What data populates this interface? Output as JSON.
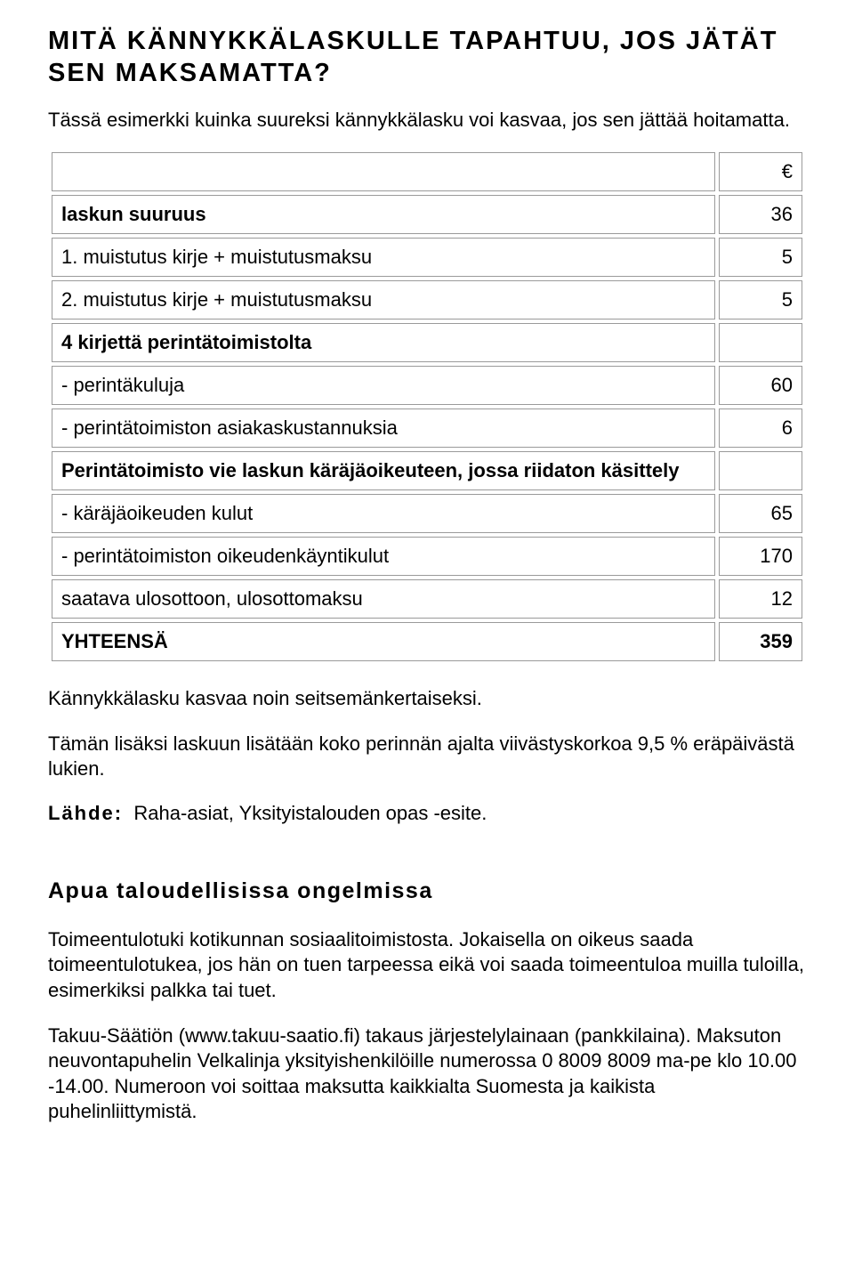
{
  "title_line1": "MITÄ KÄNNYKKÄLASKULLE TAPAHTUU, JOS JÄTÄT",
  "title_line2": "SEN MAKSAMATTA?",
  "intro": "Tässä esimerkki kuinka suureksi kännykkälasku voi kasvaa, jos sen jättää hoitamatta.",
  "currency": "€",
  "rows": {
    "r0": {
      "label": "laskun suuruus",
      "value": "36"
    },
    "r1": {
      "label": "1. muistutus kirje + muistutusmaksu",
      "value": "5"
    },
    "r2": {
      "label": "2. muistutus kirje + muistutusmaksu",
      "value": "5"
    },
    "r3": {
      "label": "4 kirjettä perintätoimistolta",
      "value": ""
    },
    "r4": {
      "label": "- perintäkuluja",
      "value": "60"
    },
    "r5": {
      "label": "- perintätoimiston asiakaskustannuksia",
      "value": "6"
    },
    "r6": {
      "label": "Perintätoimisto vie laskun käräjäoikeuteen, jossa riidaton käsittely",
      "value": ""
    },
    "r7": {
      "label": "- käräjäoikeuden kulut",
      "value": "65"
    },
    "r8": {
      "label": "- perintätoimiston oikeudenkäyntikulut",
      "value": "170"
    },
    "r9": {
      "label": "saatava ulosottoon, ulosottomaksu",
      "value": "12"
    },
    "r10": {
      "label": "YHTEENSÄ",
      "value": "359"
    }
  },
  "after_table_1": "Kännykkälasku kasvaa noin seitsemänkertaiseksi.",
  "after_table_2": "Tämän lisäksi laskuun lisätään koko perinnän ajalta viivästyskorkoa 9,5 % eräpäivästä lukien.",
  "source_label": "Lähde:",
  "source_text": "Raha-asiat, Yksityistalouden opas -esite.",
  "subhead": "Apua taloudellisissa ongelmissa",
  "p1": "Toimeentulotuki kotikunnan sosiaalitoimistosta. Jokaisella on oikeus saada toimeentulotukea, jos hän on tuen tarpeessa eikä voi saada toimeentuloa muilla tuloilla, esimerkiksi palkka tai tuet.",
  "p2": "Takuu-Säätiön (www.takuu-saatio.fi) takaus järjestelylainaan (pankkilaina). Maksuton neuvontapuhelin Velkalinja yksityishenkilöille numerossa 0 8009 8009 ma-pe klo 10.00 -14.00. Numeroon voi soittaa maksutta kaikkialta Suomesta ja kaikista puhelinliittymistä."
}
